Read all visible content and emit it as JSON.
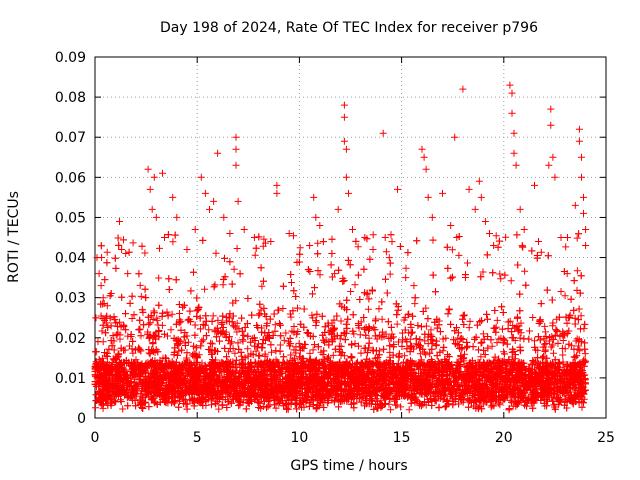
{
  "chart_data": {
    "type": "scatter",
    "title": "Day 198 of 2024, Rate Of TEC Index for receiver p796",
    "xlabel": "GPS time / hours",
    "ylabel": "ROTI / TECUs",
    "xlim": [
      0,
      25
    ],
    "ylim": [
      0,
      0.09
    ],
    "xticks": [
      0,
      5,
      10,
      15,
      20,
      25
    ],
    "xtick_labels": [
      "0",
      "5",
      "10",
      "15",
      "20",
      "25"
    ],
    "yticks": [
      0,
      0.01,
      0.02,
      0.03,
      0.04,
      0.05,
      0.06,
      0.07,
      0.08,
      0.09
    ],
    "ytick_labels": [
      "0",
      "0.01",
      "0.02",
      "0.03",
      "0.04",
      "0.05",
      "0.06",
      "0.07",
      "0.08",
      "0.09"
    ],
    "grid": true,
    "marker": "plus",
    "marker_color": "#ff0000",
    "series": [
      {
        "name": "ROTI",
        "points": [
          [
            0.1,
            0.04
          ],
          [
            0.2,
            0.036
          ],
          [
            0.3,
            0.033
          ],
          [
            0.4,
            0.03
          ],
          [
            0.6,
            0.028
          ],
          [
            1.2,
            0.049
          ],
          [
            1.3,
            0.042
          ],
          [
            1.5,
            0.041
          ],
          [
            1.6,
            0.036
          ],
          [
            2.6,
            0.062
          ],
          [
            2.7,
            0.057
          ],
          [
            2.8,
            0.052
          ],
          [
            2.9,
            0.06
          ],
          [
            3.0,
            0.05
          ],
          [
            3.3,
            0.061
          ],
          [
            3.4,
            0.045
          ],
          [
            3.8,
            0.055
          ],
          [
            4.0,
            0.05
          ],
          [
            4.5,
            0.042
          ],
          [
            4.9,
            0.047
          ],
          [
            5.2,
            0.06
          ],
          [
            5.4,
            0.056
          ],
          [
            5.6,
            0.052
          ],
          [
            5.8,
            0.054
          ],
          [
            6.0,
            0.066
          ],
          [
            6.3,
            0.05
          ],
          [
            6.6,
            0.046
          ],
          [
            6.9,
            0.07
          ],
          [
            6.9,
            0.067
          ],
          [
            6.9,
            0.063
          ],
          [
            7.0,
            0.054
          ],
          [
            7.3,
            0.047
          ],
          [
            7.8,
            0.045
          ],
          [
            8.6,
            0.044
          ],
          [
            8.9,
            0.058
          ],
          [
            8.9,
            0.056
          ],
          [
            9.5,
            0.046
          ],
          [
            10.5,
            0.043
          ],
          [
            10.7,
            0.055
          ],
          [
            10.8,
            0.05
          ],
          [
            11.0,
            0.048
          ],
          [
            11.9,
            0.052
          ],
          [
            12.2,
            0.078
          ],
          [
            12.2,
            0.075
          ],
          [
            12.2,
            0.069
          ],
          [
            12.3,
            0.067
          ],
          [
            12.3,
            0.06
          ],
          [
            12.4,
            0.056
          ],
          [
            12.6,
            0.047
          ],
          [
            13.2,
            0.045
          ],
          [
            13.6,
            0.042
          ],
          [
            14.1,
            0.071
          ],
          [
            14.2,
            0.045
          ],
          [
            14.4,
            0.04
          ],
          [
            14.8,
            0.057
          ],
          [
            15.2,
            0.035
          ],
          [
            15.6,
            0.033
          ],
          [
            16.0,
            0.067
          ],
          [
            16.1,
            0.065
          ],
          [
            16.2,
            0.062
          ],
          [
            16.3,
            0.055
          ],
          [
            16.5,
            0.05
          ],
          [
            17.0,
            0.056
          ],
          [
            17.4,
            0.048
          ],
          [
            17.6,
            0.07
          ],
          [
            17.7,
            0.045
          ],
          [
            18.0,
            0.082
          ],
          [
            18.3,
            0.057
          ],
          [
            18.6,
            0.052
          ],
          [
            18.8,
            0.059
          ],
          [
            18.9,
            0.055
          ],
          [
            19.1,
            0.049
          ],
          [
            19.3,
            0.046
          ],
          [
            19.5,
            0.043
          ],
          [
            20.3,
            0.083
          ],
          [
            20.4,
            0.081
          ],
          [
            20.4,
            0.076
          ],
          [
            20.5,
            0.071
          ],
          [
            20.5,
            0.066
          ],
          [
            20.6,
            0.063
          ],
          [
            20.8,
            0.052
          ],
          [
            21.0,
            0.047
          ],
          [
            21.5,
            0.058
          ],
          [
            21.7,
            0.044
          ],
          [
            22.2,
            0.063
          ],
          [
            22.3,
            0.077
          ],
          [
            22.3,
            0.073
          ],
          [
            22.4,
            0.065
          ],
          [
            22.5,
            0.06
          ],
          [
            22.8,
            0.045
          ],
          [
            23.1,
            0.036
          ],
          [
            23.5,
            0.053
          ],
          [
            23.7,
            0.072
          ],
          [
            23.7,
            0.069
          ],
          [
            23.8,
            0.065
          ],
          [
            23.8,
            0.06
          ],
          [
            23.9,
            0.055
          ],
          [
            23.9,
            0.051
          ],
          [
            24.0,
            0.047
          ],
          [
            24.0,
            0.043
          ]
        ],
        "dense_band": {
          "x_range": [
            0,
            24
          ],
          "y_floor_range": [
            0.002,
            0.007
          ],
          "y_typical": 0.01,
          "y_envelope_max": 0.046,
          "approx_points": 9000
        }
      }
    ]
  }
}
